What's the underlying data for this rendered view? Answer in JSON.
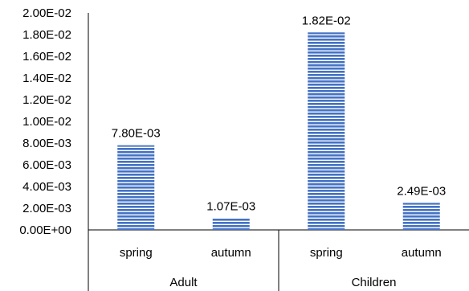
{
  "chart_data": {
    "type": "bar",
    "categories": [
      "spring",
      "autumn",
      "spring",
      "autumn"
    ],
    "groups": [
      {
        "label": "Adult",
        "span": 2
      },
      {
        "label": "Children",
        "span": 2
      }
    ],
    "values": [
      0.0078,
      0.00107,
      0.0182,
      0.00249
    ],
    "data_labels": [
      "7.80E-03",
      "1.07E-03",
      "1.82E-02",
      "2.49E-03"
    ],
    "y_ticks": [
      0,
      0.002,
      0.004,
      0.006,
      0.008,
      0.01,
      0.012,
      0.014,
      0.016,
      0.018,
      0.02
    ],
    "y_tick_labels": [
      "0.00E+00",
      "2.00E-03",
      "4.00E-03",
      "6.00E-03",
      "8.00E-03",
      "1.00E-02",
      "1.20E-02",
      "1.40E-02",
      "1.60E-02",
      "1.80E-02",
      "2.00E-02"
    ],
    "ylim": [
      0,
      0.02
    ],
    "grid": false,
    "legend": "none",
    "bar_color": "#4472C4",
    "bar_stripe_color": "#ffffff",
    "bar_pattern": "horizontal-lines"
  }
}
